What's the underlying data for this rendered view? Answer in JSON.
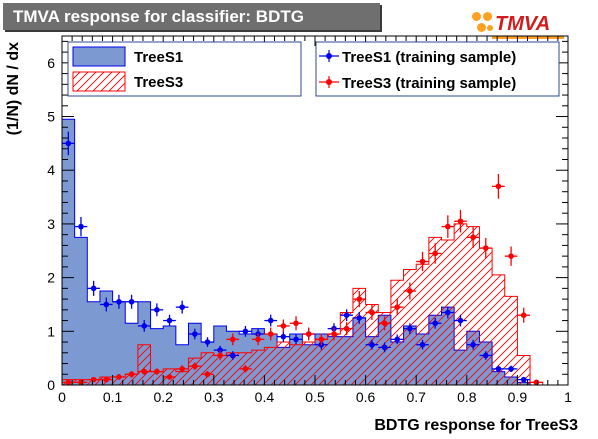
{
  "header": {
    "title": "TMVA response for classifier: BDTG",
    "logo_text": "TMVA"
  },
  "colors": {
    "title_bg": "#6f6f6f",
    "signal_fill": "#7d99d1",
    "signal_line": "#0000ee",
    "background_hatch": "#ff0000",
    "signal_marker": "#0000ee",
    "background_marker": "#ff0000",
    "logo_accent": "#ffa020",
    "logo_text": "#d01c1c"
  },
  "legend": {
    "left": [
      "TreeS1",
      "TreeS3"
    ],
    "right": [
      "TreeS1 (training sample)",
      "TreeS3 (training sample)"
    ]
  },
  "chart_data": {
    "type": "histogram",
    "xlabel": "BDTG response for TreeS3",
    "ylabel": "(1/N) dN / dx",
    "xlim": [
      0,
      1
    ],
    "ylim": [
      0,
      6.5
    ],
    "x_ticks": [
      0,
      0.1,
      0.2,
      0.3,
      0.4,
      0.5,
      0.6,
      0.7,
      0.8,
      0.9,
      1
    ],
    "x_tick_labels": [
      "0",
      "0.1",
      "0.2",
      "0.3",
      "0.4",
      "0.5",
      "0.6",
      "0.7",
      "0.8",
      "0.9",
      "1"
    ],
    "y_ticks": [
      0,
      1,
      2,
      3,
      4,
      5,
      6
    ],
    "y_tick_labels": [
      "0",
      "1",
      "2",
      "3",
      "4",
      "5",
      "6"
    ],
    "bin_edges": [
      0,
      0.025,
      0.05,
      0.075,
      0.1,
      0.125,
      0.15,
      0.175,
      0.2,
      0.225,
      0.25,
      0.275,
      0.3,
      0.325,
      0.35,
      0.375,
      0.4,
      0.425,
      0.45,
      0.475,
      0.5,
      0.525,
      0.55,
      0.575,
      0.6,
      0.625,
      0.65,
      0.675,
      0.7,
      0.725,
      0.75,
      0.775,
      0.8,
      0.825,
      0.85,
      0.875,
      0.9,
      0.925,
      0.95
    ],
    "series": [
      {
        "name": "TreeS1",
        "style": "filled histogram",
        "values": [
          4.95,
          2.75,
          1.55,
          1.75,
          1.55,
          1.15,
          1.55,
          1.05,
          1.1,
          0.75,
          1.15,
          0.8,
          1.1,
          1.0,
          0.95,
          1.05,
          0.95,
          0.7,
          0.95,
          0.75,
          0.95,
          0.9,
          0.9,
          1.25,
          0.9,
          1.3,
          0.8,
          1.1,
          0.95,
          1.3,
          1.45,
          0.65,
          1.0,
          0.8,
          0.25,
          0.15,
          0.05,
          0.0
        ]
      },
      {
        "name": "TreeS3",
        "style": "hatched histogram",
        "values": [
          0.1,
          0.1,
          0.1,
          0.15,
          0.15,
          0.2,
          0.75,
          0.25,
          0.3,
          0.25,
          0.5,
          0.6,
          0.55,
          0.6,
          0.6,
          0.65,
          0.7,
          0.8,
          0.75,
          0.8,
          0.85,
          0.95,
          1.35,
          1.8,
          1.5,
          1.35,
          1.95,
          2.15,
          2.25,
          2.75,
          2.7,
          3.0,
          2.95,
          2.55,
          2.05,
          1.65,
          0.55,
          0.05
        ]
      },
      {
        "name": "TreeS1 (training sample)",
        "style": "points with error bars",
        "x": [
          0.0125,
          0.0375,
          0.0625,
          0.0875,
          0.1125,
          0.1375,
          0.1625,
          0.1875,
          0.2125,
          0.2375,
          0.2625,
          0.2875,
          0.3125,
          0.3375,
          0.3625,
          0.3875,
          0.4125,
          0.4375,
          0.4625,
          0.4875,
          0.5125,
          0.5375,
          0.5625,
          0.5875,
          0.6125,
          0.6375,
          0.6625,
          0.6875,
          0.7125,
          0.7375,
          0.7625,
          0.7875,
          0.8125,
          0.8375,
          0.8625,
          0.8875,
          0.9125
        ],
        "y": [
          4.5,
          2.95,
          1.8,
          1.5,
          1.55,
          1.55,
          1.1,
          1.4,
          1.2,
          1.45,
          0.95,
          0.8,
          0.65,
          0.55,
          1.0,
          0.95,
          1.2,
          0.9,
          0.85,
          0.95,
          0.75,
          1.05,
          1.3,
          1.25,
          0.75,
          0.7,
          0.85,
          1.05,
          0.75,
          1.15,
          1.35,
          1.2,
          0.75,
          0.55,
          0.3,
          0.3,
          0.1
        ],
        "yerr": [
          0.22,
          0.18,
          0.14,
          0.13,
          0.13,
          0.13,
          0.11,
          0.12,
          0.11,
          0.12,
          0.1,
          0.09,
          0.08,
          0.08,
          0.1,
          0.1,
          0.11,
          0.1,
          0.09,
          0.1,
          0.09,
          0.1,
          0.11,
          0.11,
          0.09,
          0.09,
          0.09,
          0.1,
          0.09,
          0.1,
          0.11,
          0.11,
          0.09,
          0.08,
          0.06,
          0.06,
          0.04
        ]
      },
      {
        "name": "TreeS3 (training sample)",
        "style": "points with error bars",
        "x": [
          0.0125,
          0.0375,
          0.0625,
          0.0875,
          0.1125,
          0.1375,
          0.1625,
          0.1875,
          0.2125,
          0.2375,
          0.2625,
          0.2875,
          0.3125,
          0.3375,
          0.3625,
          0.3875,
          0.4125,
          0.4375,
          0.4625,
          0.4875,
          0.5125,
          0.5375,
          0.5625,
          0.5875,
          0.6125,
          0.6375,
          0.6625,
          0.6875,
          0.7125,
          0.7375,
          0.7625,
          0.7875,
          0.8125,
          0.8375,
          0.8625,
          0.8875,
          0.9125,
          0.9375
        ],
        "y": [
          0.05,
          0.05,
          0.1,
          0.1,
          0.15,
          0.2,
          0.25,
          0.25,
          0.15,
          0.3,
          0.35,
          0.2,
          0.55,
          0.85,
          0.3,
          0.85,
          0.95,
          1.1,
          1.15,
          0.95,
          0.85,
          0.95,
          1.05,
          1.6,
          1.35,
          1.15,
          1.45,
          1.75,
          2.3,
          2.45,
          2.95,
          3.05,
          2.75,
          2.55,
          3.7,
          2.4,
          1.3,
          0.05
        ],
        "yerr": [
          0.03,
          0.03,
          0.04,
          0.04,
          0.05,
          0.06,
          0.06,
          0.06,
          0.05,
          0.07,
          0.07,
          0.06,
          0.09,
          0.11,
          0.07,
          0.11,
          0.12,
          0.12,
          0.13,
          0.12,
          0.11,
          0.12,
          0.12,
          0.15,
          0.14,
          0.13,
          0.15,
          0.16,
          0.18,
          0.19,
          0.21,
          0.21,
          0.2,
          0.19,
          0.23,
          0.18,
          0.14,
          0.03
        ]
      }
    ]
  }
}
